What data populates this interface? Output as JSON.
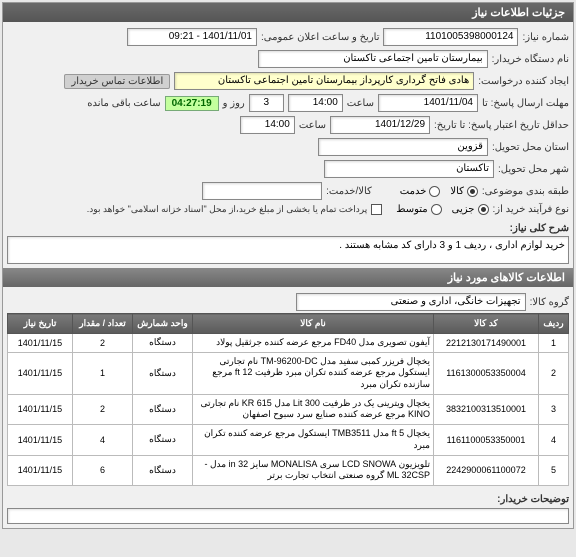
{
  "header": {
    "title": "جزئیات اطلاعات نیاز"
  },
  "labels": {
    "need_no": "شماره نیاز:",
    "announce": "تاریخ و ساعت اعلان عمومی:",
    "buyer": "نام دستگاه خریدار:",
    "requester": "ایجاد کننده درخواست:",
    "contact_tag": "اطلاعات تماس خریدار",
    "deadline": "مهلت ارسال پاسخ: تا",
    "time": "ساعت",
    "day": "روز و",
    "remaining": "ساعت باقی مانده",
    "valid_from": "حداقل تاریخ اعتبار پاسخ: تا تاریخ:",
    "province": "استان محل تحویل:",
    "city": "شهر محل تحویل:",
    "category": "طبقه بندی موضوعی:",
    "goods": "کالا/خدمت:",
    "service": "خدمت",
    "item": "کالا",
    "purchase_type": "نوع فرآیند خرید از:",
    "low": "جزیی",
    "mid": "متوسط",
    "note": "پرداخت تمام یا بخشی از مبلغ خرید،از محل \"اسناد خزانه اسلامی\" خواهد بود.",
    "desc_label": "شرح کلی نیاز:",
    "items_header": "اطلاعات کالاهای مورد نیاز",
    "group": "گروه کالا:",
    "buyer_comments": "توضیحات خریدار:"
  },
  "values": {
    "need_no": "1101005398000124",
    "announce": "1401/11/01 - 09:21",
    "buyer": "بیمارستان تامین اجتماعی تاکستان",
    "requester": "هادی فاتح گرداری کارپرداز بیمارستان تامین اجتماعی تاکستان",
    "deadline_date": "1401/11/04",
    "deadline_time": "14:00",
    "days": "3",
    "countdown": "04:27:19",
    "valid_date": "1401/12/29",
    "valid_time": "14:00",
    "province": "قزوین",
    "city": "تاکستان",
    "description": "خرید لوازم اداری ، ردیف 1 و 3 دارای کد مشابه هستند .",
    "group": "تجهیزات خانگی، اداری و صنعتی"
  },
  "table": {
    "headers": {
      "row": "ردیف",
      "code": "کد کالا",
      "name": "نام کالا",
      "unit": "واحد شمارش",
      "qty": "تعداد / مقدار",
      "date": "تاریخ نیاز"
    },
    "rows": [
      {
        "n": "1",
        "code": "2212130171490001",
        "name": "آیفون تصویری مدل FD40 مرجع عرضه کننده جرثقیل پولاد",
        "unit": "دستگاه",
        "qty": "2",
        "date": "1401/11/15"
      },
      {
        "n": "2",
        "code": "1161300053350004",
        "name": "یخچال فریزر کمبی سفید مدل TM-96200-DC نام تجارتی ایستکول مرجع عرضه کننده تکران مبرد ظرفیت ft 12 مرجع سازنده تکران مبرد",
        "unit": "دستگاه",
        "qty": "1",
        "date": "1401/11/15"
      },
      {
        "n": "3",
        "code": "3832100313510001",
        "name": "یخچال ویترینی یک در ظرفیت Lit 300 مدل KR 615 نام تجارتی KINO مرجع عرضه کننده صنایع سرد سبوح اصفهان",
        "unit": "دستگاه",
        "qty": "2",
        "date": "1401/11/15"
      },
      {
        "n": "4",
        "code": "1161100053350001",
        "name": "یخچال ft 5 مدل TMB3511 ایستکول مرجع عرضه کننده تکران مبرد",
        "unit": "دستگاه",
        "qty": "4",
        "date": "1401/11/15"
      },
      {
        "n": "5",
        "code": "2242900061100072",
        "name": "تلویزیون LCD SNOWA سری MONALISA سایز in 32 مدل -ML 32CSP گروه صنعتی انتخاب تجارت برتر",
        "unit": "دستگاه",
        "qty": "6",
        "date": "1401/11/15"
      }
    ]
  }
}
